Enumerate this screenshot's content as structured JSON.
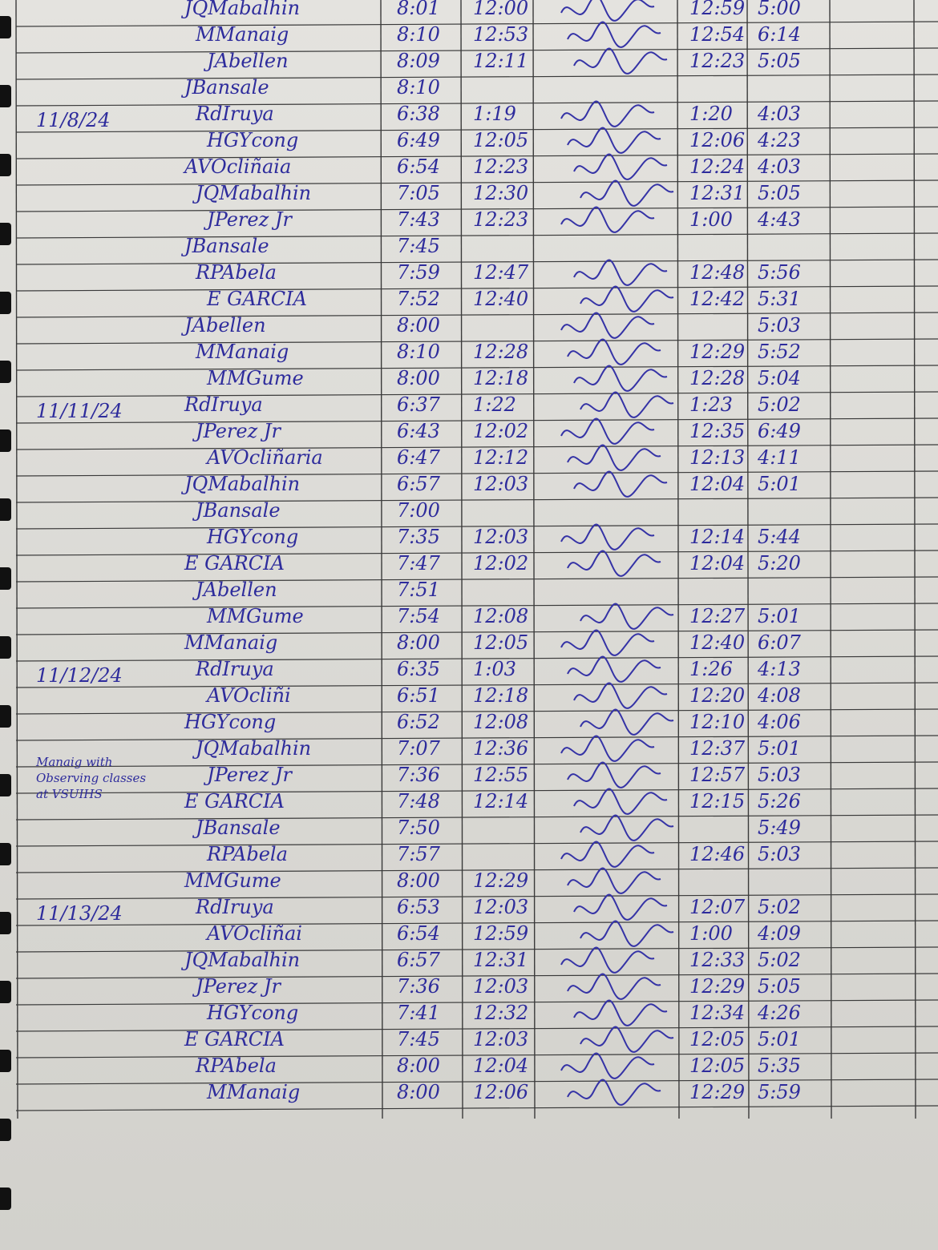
{
  "log": {
    "rows": [
      {
        "name": "JQMabalhin",
        "times": [
          "8:01",
          "12:00",
          "12:59",
          "5:00"
        ]
      },
      {
        "name": "MManaig",
        "times": [
          "8:10",
          "12:53",
          "12:54",
          "6:14"
        ]
      },
      {
        "name": "JAbellen",
        "times": [
          "8:09",
          "12:11",
          "12:23",
          "5:05"
        ]
      },
      {
        "name": "JBansale",
        "times": [
          "8:10",
          null,
          null,
          null
        ]
      },
      {
        "date": "11/8/24",
        "name": "RdIruya",
        "times": [
          "6:38",
          "1:19",
          "1:20",
          "4:03"
        ]
      },
      {
        "name": "HGYcong",
        "times": [
          "6:49",
          "12:05",
          "12:06",
          "4:23"
        ]
      },
      {
        "name": "AVOcliñaia",
        "times": [
          "6:54",
          "12:23",
          "12:24",
          "4:03"
        ]
      },
      {
        "name": "JQMabalhin",
        "times": [
          "7:05",
          "12:30",
          "12:31",
          "5:05"
        ]
      },
      {
        "name": "JPerez Jr",
        "times": [
          "7:43",
          "12:23",
          "1:00",
          "4:43"
        ]
      },
      {
        "name": "JBansale",
        "times": [
          "7:45",
          null,
          null,
          null
        ]
      },
      {
        "name": "RPAbela",
        "times": [
          "7:59",
          "12:47",
          "12:48",
          "5:56"
        ]
      },
      {
        "name": "E GARCIA",
        "times": [
          "7:52",
          "12:40",
          "12:42",
          "5:31"
        ]
      },
      {
        "name": "JAbellen",
        "times": [
          "8:00",
          null,
          null,
          "5:03"
        ]
      },
      {
        "name": "MManaig",
        "times": [
          "8:10",
          "12:28",
          "12:29",
          "5:52"
        ]
      },
      {
        "name": "MMGume",
        "times": [
          "8:00",
          "12:18",
          "12:28",
          "5:04"
        ]
      },
      {
        "date": "11/11/24",
        "name": "RdIruya",
        "times": [
          "6:37",
          "1:22",
          "1:23",
          "5:02"
        ]
      },
      {
        "name": "JPerez Jr",
        "times": [
          "6:43",
          "12:02",
          "12:35",
          "6:49"
        ]
      },
      {
        "name": "AVOcliñaria",
        "times": [
          "6:47",
          "12:12",
          "12:13",
          "4:11"
        ]
      },
      {
        "name": "JQMabalhin",
        "times": [
          "6:57",
          "12:03",
          "12:04",
          "5:01"
        ]
      },
      {
        "name": "JBansale",
        "times": [
          "7:00",
          null,
          null,
          null
        ]
      },
      {
        "name": "HGYcong",
        "times": [
          "7:35",
          "12:03",
          "12:14",
          "5:44"
        ]
      },
      {
        "name": "E GARCIA",
        "times": [
          "7:47",
          "12:02",
          "12:04",
          "5:20"
        ]
      },
      {
        "name": "JAbellen",
        "times": [
          "7:51",
          null,
          null,
          null
        ]
      },
      {
        "name": "MMGume",
        "times": [
          "7:54",
          "12:08",
          "12:27",
          "5:01"
        ]
      },
      {
        "name": "MManaig",
        "times": [
          "8:00",
          "12:05",
          "12:40",
          "6:07"
        ]
      },
      {
        "date": "11/12/24",
        "name": "RdIruya",
        "times": [
          "6:35",
          "1:03",
          "1:26",
          "4:13"
        ]
      },
      {
        "name": "AVOcliñi",
        "times": [
          "6:51",
          "12:18",
          "12:20",
          "4:08"
        ]
      },
      {
        "name": "HGYcong",
        "times": [
          "6:52",
          "12:08",
          "12:10",
          "4:06"
        ]
      },
      {
        "name": "JQMabalhin",
        "times": [
          "7:07",
          "12:36",
          "12:37",
          "5:01"
        ]
      },
      {
        "note": "Manaig with Observing classes at VSUIHS",
        "name": "JPerez Jr",
        "times": [
          "7:36",
          "12:55",
          "12:57",
          "5:03"
        ]
      },
      {
        "name": "E GARCIA",
        "times": [
          "7:48",
          "12:14",
          "12:15",
          "5:26"
        ]
      },
      {
        "name": "JBansale",
        "times": [
          "7:50",
          null,
          null,
          "5:49"
        ]
      },
      {
        "name": "RPAbela",
        "times": [
          "7:57",
          null,
          "12:46",
          "5:03"
        ]
      },
      {
        "name": "MMGume",
        "times": [
          "8:00",
          "12:29",
          null,
          null
        ]
      },
      {
        "date": "11/13/24",
        "name": "RdIruya",
        "times": [
          "6:53",
          "12:03",
          "12:07",
          "5:02"
        ]
      },
      {
        "name": "AVOcliñai",
        "times": [
          "6:54",
          "12:59",
          "1:00",
          "4:09"
        ]
      },
      {
        "name": "JQMabalhin",
        "times": [
          "6:57",
          "12:31",
          "12:33",
          "5:02"
        ]
      },
      {
        "name": "JPerez Jr",
        "times": [
          "7:36",
          "12:03",
          "12:29",
          "5:05"
        ]
      },
      {
        "name": "HGYcong",
        "times": [
          "7:41",
          "12:32",
          "12:34",
          "4:26"
        ]
      },
      {
        "name": "E GARCIA",
        "times": [
          "7:45",
          "12:03",
          "12:05",
          "5:01"
        ]
      },
      {
        "name": "RPAbela",
        "times": [
          "8:00",
          "12:04",
          "12:05",
          "5:35"
        ]
      },
      {
        "name": "MManaig",
        "times": [
          "8:00",
          "12:06",
          "12:29",
          "5:59"
        ]
      }
    ]
  }
}
